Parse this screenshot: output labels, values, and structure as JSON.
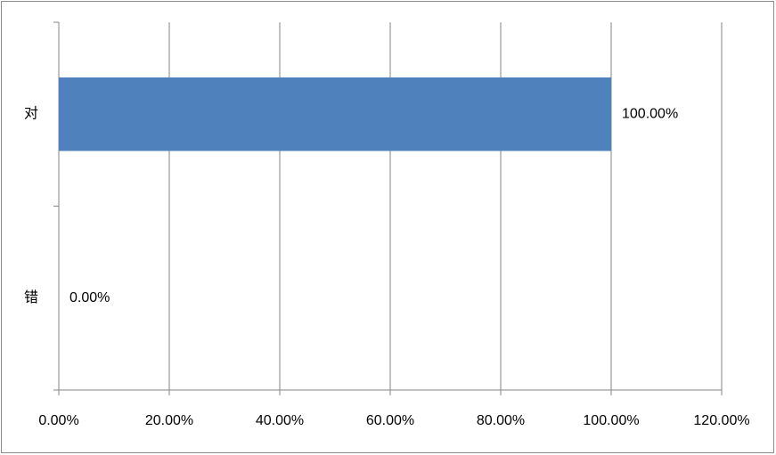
{
  "chart_data": {
    "type": "bar",
    "orientation": "horizontal",
    "categories": [
      "对",
      "错"
    ],
    "values": [
      100,
      0
    ],
    "value_labels": [
      "100.00%",
      "0.00%"
    ],
    "color": "#4f81bd",
    "xlim": [
      0,
      120
    ],
    "xticks": [
      {
        "value": 0,
        "label": "0.00%"
      },
      {
        "value": 20,
        "label": "20.00%"
      },
      {
        "value": 40,
        "label": "40.00%"
      },
      {
        "value": 60,
        "label": "60.00%"
      },
      {
        "value": 80,
        "label": "80.00%"
      },
      {
        "value": 100,
        "label": "100.00%"
      },
      {
        "value": 120,
        "label": "120.00%"
      }
    ],
    "grid": true
  }
}
